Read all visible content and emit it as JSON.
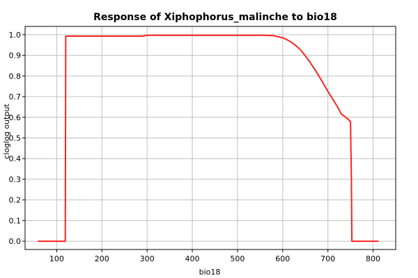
{
  "chart_data": {
    "type": "line",
    "title": "Response of Xiphophorus_malinche to bio18",
    "xlabel": "bio18",
    "ylabel": "cloglog output",
    "xlim": [
      30,
      850
    ],
    "ylim": [
      -0.04,
      1.04
    ],
    "x_ticks": [
      100,
      200,
      300,
      400,
      500,
      600,
      700,
      800
    ],
    "y_ticks": [
      0.0,
      0.1,
      0.2,
      0.3,
      0.4,
      0.5,
      0.6,
      0.7,
      0.8,
      0.9,
      1.0
    ],
    "x_tick_labels": [
      "100",
      "200",
      "300",
      "400",
      "500",
      "600",
      "700",
      "800"
    ],
    "y_tick_labels": [
      "0.0",
      "0.1",
      "0.2",
      "0.3",
      "0.4",
      "0.5",
      "0.6",
      "0.7",
      "0.8",
      "0.9",
      "1.0"
    ],
    "grid": true,
    "series": [
      {
        "color": "#ff2020",
        "x": [
          58,
          119,
          120,
          200,
          290,
          300,
          400,
          500,
          560,
          580,
          600,
          610,
          620,
          630,
          640,
          650,
          660,
          670,
          680,
          690,
          700,
          710,
          720,
          730,
          740,
          750,
          752,
          753,
          760,
          812
        ],
        "y": [
          0.0,
          0.0,
          0.993,
          0.993,
          0.993,
          0.997,
          0.997,
          0.997,
          0.997,
          0.995,
          0.985,
          0.975,
          0.962,
          0.945,
          0.925,
          0.898,
          0.868,
          0.835,
          0.8,
          0.763,
          0.725,
          0.69,
          0.655,
          0.615,
          0.6,
          0.58,
          0.3,
          0.0,
          0.0,
          0.0
        ]
      }
    ]
  }
}
